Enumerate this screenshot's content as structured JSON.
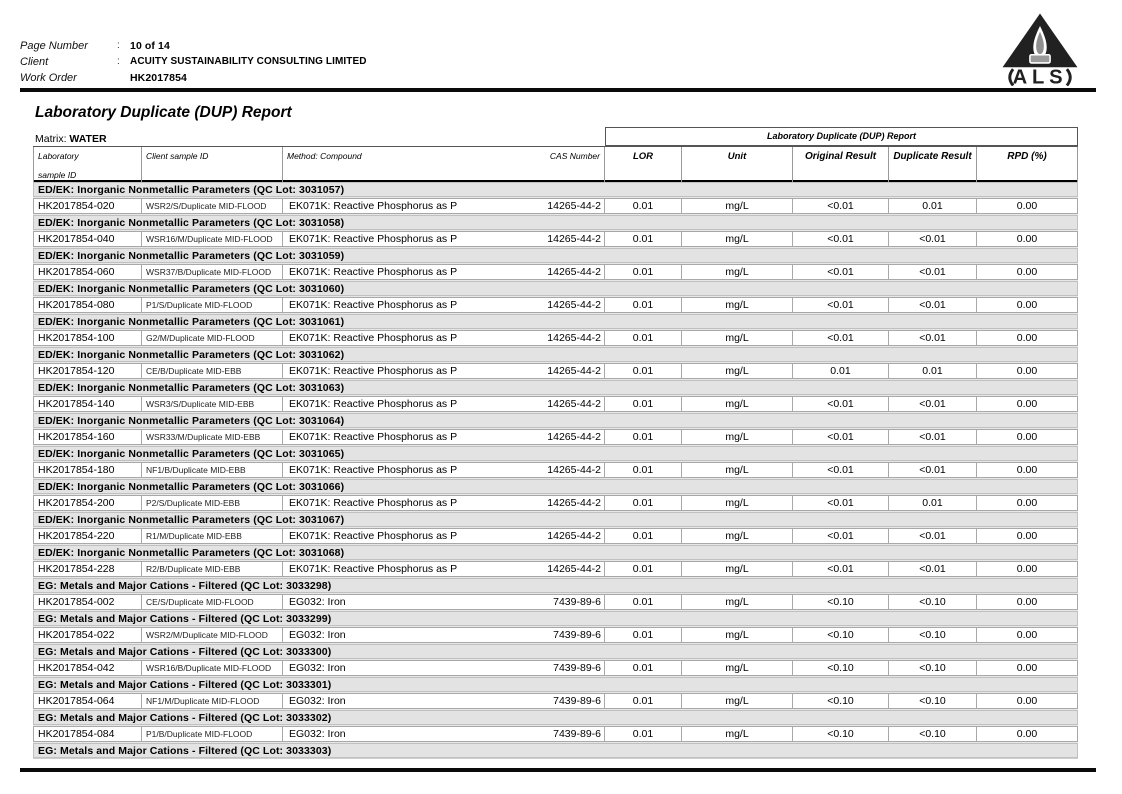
{
  "header": {
    "fields": [
      {
        "label": "Page Number",
        "colon": ":",
        "value": "10 of 14"
      },
      {
        "label": "Client",
        "colon": ":",
        "value": "ACUITY SUSTAINABILITY CONSULTING LIMITED"
      },
      {
        "label": "Work Order",
        "colon": "",
        "value": "HK2017854"
      }
    ],
    "logo_text": "ALS"
  },
  "title": "Laboratory Duplicate (DUP) Report",
  "matrix": {
    "label": "Matrix:",
    "value": "WATER"
  },
  "colors": {
    "section_band": "#e3e3e3",
    "rule": "#0a0a0a",
    "logo": "#212121"
  },
  "table": {
    "span_header": "Laboratory Duplicate (DUP) Report",
    "col_headers": {
      "lab_line1": "Laboratory",
      "lab_line2": "sample ID",
      "client": "Client sample ID",
      "method": "Method: Compound",
      "cas": "CAS Number",
      "lor": "LOR",
      "unit": "Unit",
      "original": "Original Result",
      "duplicate": "Duplicate Result",
      "rpd": "RPD (%)"
    },
    "sections": [
      {
        "title": "ED/EK: Inorganic Nonmetallic Parameters  (QC Lot: 3031057)",
        "rows": [
          [
            "HK2017854-020",
            "WSR2/S/Duplicate MID-FLOOD",
            "EK071K: Reactive Phosphorus as P",
            "14265-44-2",
            "0.01",
            "mg/L",
            "<0.01",
            "0.01",
            "0.00"
          ]
        ]
      },
      {
        "title": "ED/EK: Inorganic Nonmetallic Parameters  (QC Lot: 3031058)",
        "rows": [
          [
            "HK2017854-040",
            "WSR16/M/Duplicate MID-FLOOD",
            "EK071K: Reactive Phosphorus as P",
            "14265-44-2",
            "0.01",
            "mg/L",
            "<0.01",
            "<0.01",
            "0.00"
          ]
        ]
      },
      {
        "title": "ED/EK: Inorganic Nonmetallic Parameters  (QC Lot: 3031059)",
        "rows": [
          [
            "HK2017854-060",
            "WSR37/B/Duplicate MID-FLOOD",
            "EK071K: Reactive Phosphorus as P",
            "14265-44-2",
            "0.01",
            "mg/L",
            "<0.01",
            "<0.01",
            "0.00"
          ]
        ]
      },
      {
        "title": "ED/EK: Inorganic Nonmetallic Parameters  (QC Lot: 3031060)",
        "rows": [
          [
            "HK2017854-080",
            "P1/S/Duplicate MID-FLOOD",
            "EK071K: Reactive Phosphorus as P",
            "14265-44-2",
            "0.01",
            "mg/L",
            "<0.01",
            "<0.01",
            "0.00"
          ]
        ]
      },
      {
        "title": "ED/EK: Inorganic Nonmetallic Parameters  (QC Lot: 3031061)",
        "rows": [
          [
            "HK2017854-100",
            "G2/M/Duplicate MID-FLOOD",
            "EK071K: Reactive Phosphorus as P",
            "14265-44-2",
            "0.01",
            "mg/L",
            "<0.01",
            "<0.01",
            "0.00"
          ]
        ]
      },
      {
        "title": "ED/EK: Inorganic Nonmetallic Parameters  (QC Lot: 3031062)",
        "rows": [
          [
            "HK2017854-120",
            "CE/B/Duplicate MID-EBB",
            "EK071K: Reactive Phosphorus as P",
            "14265-44-2",
            "0.01",
            "mg/L",
            "0.01",
            "0.01",
            "0.00"
          ]
        ]
      },
      {
        "title": "ED/EK: Inorganic Nonmetallic Parameters  (QC Lot: 3031063)",
        "rows": [
          [
            "HK2017854-140",
            "WSR3/S/Duplicate MID-EBB",
            "EK071K: Reactive Phosphorus as P",
            "14265-44-2",
            "0.01",
            "mg/L",
            "<0.01",
            "<0.01",
            "0.00"
          ]
        ]
      },
      {
        "title": "ED/EK: Inorganic Nonmetallic Parameters  (QC Lot: 3031064)",
        "rows": [
          [
            "HK2017854-160",
            "WSR33/M/Duplicate MID-EBB",
            "EK071K: Reactive Phosphorus as P",
            "14265-44-2",
            "0.01",
            "mg/L",
            "<0.01",
            "<0.01",
            "0.00"
          ]
        ]
      },
      {
        "title": "ED/EK: Inorganic Nonmetallic Parameters  (QC Lot: 3031065)",
        "rows": [
          [
            "HK2017854-180",
            "NF1/B/Duplicate MID-EBB",
            "EK071K: Reactive Phosphorus as P",
            "14265-44-2",
            "0.01",
            "mg/L",
            "<0.01",
            "<0.01",
            "0.00"
          ]
        ]
      },
      {
        "title": "ED/EK: Inorganic Nonmetallic Parameters  (QC Lot: 3031066)",
        "rows": [
          [
            "HK2017854-200",
            "P2/S/Duplicate MID-EBB",
            "EK071K: Reactive Phosphorus as P",
            "14265-44-2",
            "0.01",
            "mg/L",
            "<0.01",
            "0.01",
            "0.00"
          ]
        ]
      },
      {
        "title": "ED/EK: Inorganic Nonmetallic Parameters  (QC Lot: 3031067)",
        "rows": [
          [
            "HK2017854-220",
            "R1/M/Duplicate MID-EBB",
            "EK071K: Reactive Phosphorus as P",
            "14265-44-2",
            "0.01",
            "mg/L",
            "<0.01",
            "<0.01",
            "0.00"
          ]
        ]
      },
      {
        "title": "ED/EK: Inorganic Nonmetallic Parameters  (QC Lot: 3031068)",
        "rows": [
          [
            "HK2017854-228",
            "R2/B/Duplicate MID-EBB",
            "EK071K: Reactive Phosphorus as P",
            "14265-44-2",
            "0.01",
            "mg/L",
            "<0.01",
            "<0.01",
            "0.00"
          ]
        ]
      },
      {
        "title": "EG: Metals and Major Cations - Filtered  (QC Lot: 3033298)",
        "rows": [
          [
            "HK2017854-002",
            "CE/S/Duplicate MID-FLOOD",
            "EG032: Iron",
            "7439-89-6",
            "0.01",
            "mg/L",
            "<0.10",
            "<0.10",
            "0.00"
          ]
        ]
      },
      {
        "title": "EG: Metals and Major Cations - Filtered  (QC Lot: 3033299)",
        "rows": [
          [
            "HK2017854-022",
            "WSR2/M/Duplicate MID-FLOOD",
            "EG032: Iron",
            "7439-89-6",
            "0.01",
            "mg/L",
            "<0.10",
            "<0.10",
            "0.00"
          ]
        ]
      },
      {
        "title": "EG: Metals and Major Cations - Filtered  (QC Lot: 3033300)",
        "rows": [
          [
            "HK2017854-042",
            "WSR16/B/Duplicate MID-FLOOD",
            "EG032: Iron",
            "7439-89-6",
            "0.01",
            "mg/L",
            "<0.10",
            "<0.10",
            "0.00"
          ]
        ]
      },
      {
        "title": "EG: Metals and Major Cations - Filtered  (QC Lot: 3033301)",
        "rows": [
          [
            "HK2017854-064",
            "NF1/M/Duplicate MID-FLOOD",
            "EG032: Iron",
            "7439-89-6",
            "0.01",
            "mg/L",
            "<0.10",
            "<0.10",
            "0.00"
          ]
        ]
      },
      {
        "title": "EG: Metals and Major Cations - Filtered  (QC Lot: 3033302)",
        "rows": [
          [
            "HK2017854-084",
            "P1/B/Duplicate MID-FLOOD",
            "EG032: Iron",
            "7439-89-6",
            "0.01",
            "mg/L",
            "<0.10",
            "<0.10",
            "0.00"
          ]
        ]
      },
      {
        "title": "EG: Metals and Major Cations - Filtered  (QC Lot: 3033303)",
        "rows": []
      }
    ]
  }
}
